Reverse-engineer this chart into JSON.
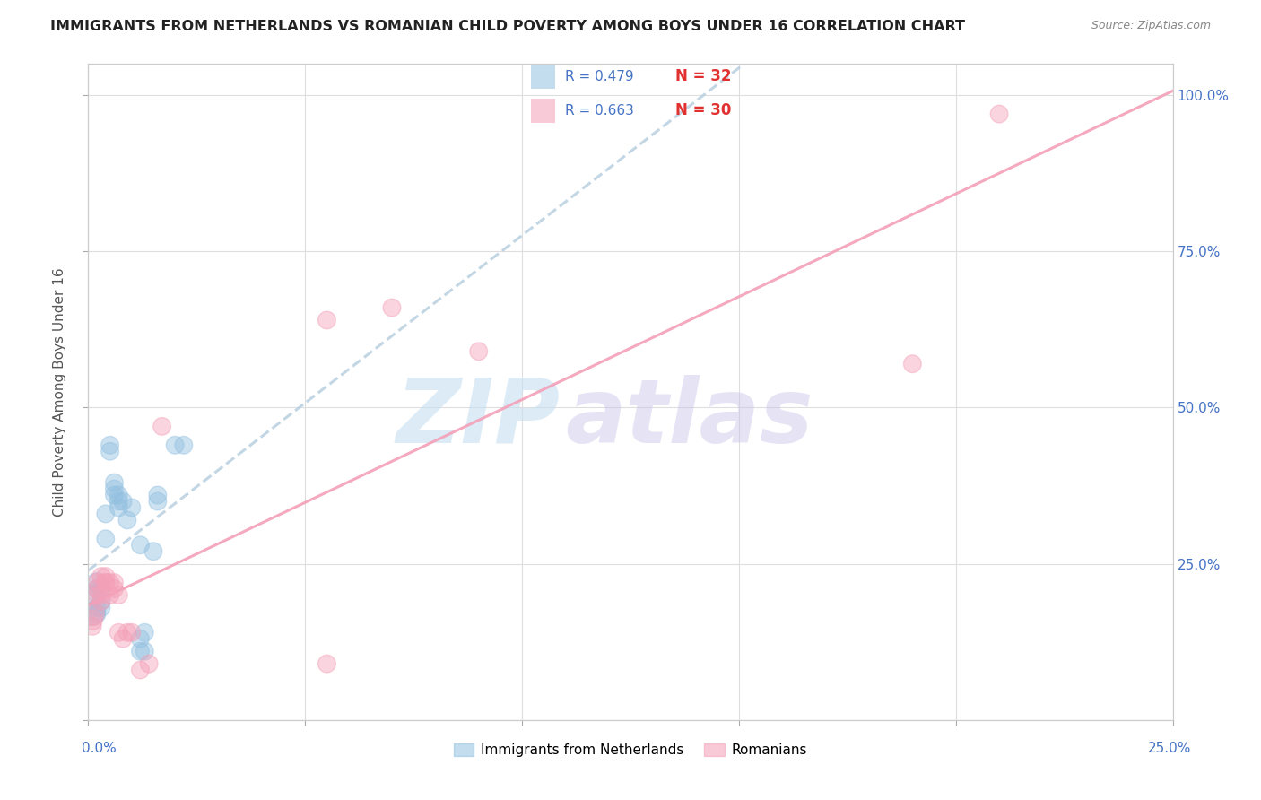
{
  "title": "IMMIGRANTS FROM NETHERLANDS VS ROMANIAN CHILD POVERTY AMONG BOYS UNDER 16 CORRELATION CHART",
  "source": "Source: ZipAtlas.com",
  "ylabel": "Child Poverty Among Boys Under 16",
  "legend_label1": "Immigrants from Netherlands",
  "legend_label2": "Romanians",
  "legend_R1": "R = 0.479",
  "legend_N1": "N = 32",
  "legend_R2": "R = 0.663",
  "legend_N2": "N = 30",
  "color_blue": "#92c0e0",
  "color_pink": "#f4a0b8",
  "color_blue_line_dash": "#b0c8e0",
  "color_pink_line": "#f4a0b8",
  "xlim": [
    0.0,
    0.25
  ],
  "ylim": [
    0.0,
    1.05
  ],
  "blue_points": [
    [
      0.001,
      0.17
    ],
    [
      0.001,
      0.2
    ],
    [
      0.002,
      0.22
    ],
    [
      0.002,
      0.17
    ],
    [
      0.002,
      0.18
    ],
    [
      0.002,
      0.21
    ],
    [
      0.003,
      0.21
    ],
    [
      0.003,
      0.18
    ],
    [
      0.003,
      0.19
    ],
    [
      0.004,
      0.33
    ],
    [
      0.004,
      0.29
    ],
    [
      0.005,
      0.44
    ],
    [
      0.005,
      0.43
    ],
    [
      0.006,
      0.38
    ],
    [
      0.006,
      0.37
    ],
    [
      0.006,
      0.36
    ],
    [
      0.007,
      0.36
    ],
    [
      0.007,
      0.35
    ],
    [
      0.007,
      0.34
    ],
    [
      0.008,
      0.35
    ],
    [
      0.009,
      0.32
    ],
    [
      0.01,
      0.34
    ],
    [
      0.012,
      0.28
    ],
    [
      0.012,
      0.13
    ],
    [
      0.012,
      0.11
    ],
    [
      0.013,
      0.14
    ],
    [
      0.013,
      0.11
    ],
    [
      0.015,
      0.27
    ],
    [
      0.016,
      0.36
    ],
    [
      0.016,
      0.35
    ],
    [
      0.02,
      0.44
    ],
    [
      0.022,
      0.44
    ]
  ],
  "pink_points": [
    [
      0.001,
      0.17
    ],
    [
      0.001,
      0.16
    ],
    [
      0.001,
      0.15
    ],
    [
      0.002,
      0.22
    ],
    [
      0.002,
      0.21
    ],
    [
      0.002,
      0.2
    ],
    [
      0.003,
      0.23
    ],
    [
      0.003,
      0.2
    ],
    [
      0.003,
      0.19
    ],
    [
      0.004,
      0.23
    ],
    [
      0.004,
      0.22
    ],
    [
      0.004,
      0.22
    ],
    [
      0.005,
      0.22
    ],
    [
      0.005,
      0.2
    ],
    [
      0.006,
      0.22
    ],
    [
      0.006,
      0.21
    ],
    [
      0.007,
      0.2
    ],
    [
      0.007,
      0.14
    ],
    [
      0.008,
      0.13
    ],
    [
      0.009,
      0.14
    ],
    [
      0.01,
      0.14
    ],
    [
      0.012,
      0.08
    ],
    [
      0.014,
      0.09
    ],
    [
      0.017,
      0.47
    ],
    [
      0.055,
      0.64
    ],
    [
      0.055,
      0.09
    ],
    [
      0.07,
      0.66
    ],
    [
      0.09,
      0.59
    ],
    [
      0.19,
      0.57
    ],
    [
      0.21,
      0.97
    ]
  ],
  "blue_sizes": [
    350,
    250,
    250,
    200,
    200,
    200,
    200,
    200,
    200,
    200,
    200,
    200,
    200,
    200,
    200,
    200,
    200,
    200,
    200,
    200,
    200,
    200,
    200,
    200,
    200,
    200,
    200,
    200,
    200,
    200,
    200,
    200
  ],
  "pink_sizes": [
    350,
    250,
    200,
    200,
    200,
    200,
    200,
    200,
    200,
    200,
    200,
    200,
    200,
    200,
    200,
    200,
    200,
    200,
    200,
    200,
    200,
    200,
    200,
    200,
    200,
    200,
    200,
    200,
    200,
    200
  ]
}
